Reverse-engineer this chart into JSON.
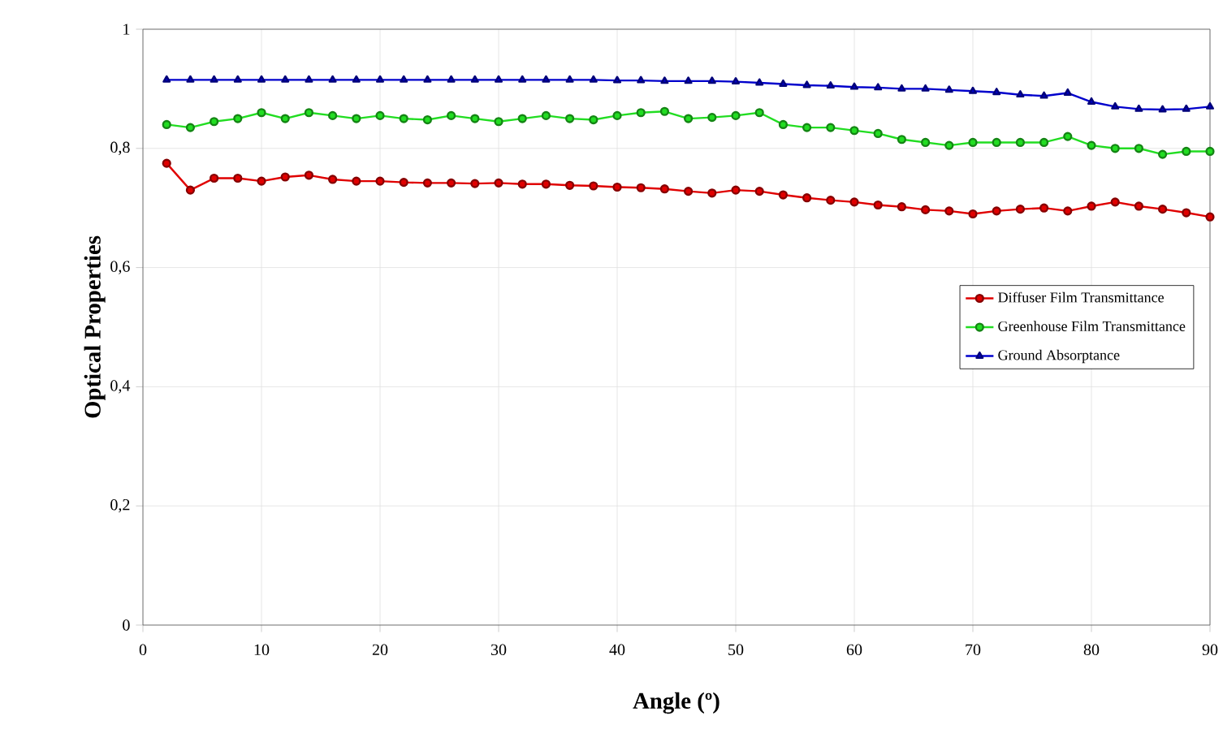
{
  "chart_data": {
    "type": "line",
    "xlabel": "Angle (º)",
    "ylabel": "Optical Properties",
    "x": [
      2,
      4,
      6,
      8,
      10,
      12,
      14,
      16,
      18,
      20,
      22,
      24,
      26,
      28,
      30,
      32,
      34,
      36,
      38,
      40,
      42,
      44,
      46,
      48,
      50,
      52,
      54,
      56,
      58,
      60,
      62,
      64,
      66,
      68,
      70,
      72,
      74,
      76,
      78,
      80,
      82,
      84,
      86,
      88,
      90
    ],
    "series": [
      {
        "name": "Diffuser Film Transmittance",
        "color": "#e00000",
        "marker": "circle",
        "values": [
          0.775,
          0.73,
          0.75,
          0.75,
          0.745,
          0.752,
          0.755,
          0.748,
          0.745,
          0.745,
          0.743,
          0.742,
          0.742,
          0.741,
          0.742,
          0.74,
          0.74,
          0.738,
          0.737,
          0.735,
          0.734,
          0.732,
          0.728,
          0.725,
          0.73,
          0.728,
          0.722,
          0.717,
          0.713,
          0.71,
          0.705,
          0.702,
          0.697,
          0.695,
          0.69,
          0.695,
          0.698,
          0.7,
          0.695,
          0.703,
          0.71,
          0.703,
          0.698,
          0.692,
          0.685
        ]
      },
      {
        "name": "Greenhouse Film Transmittance",
        "color": "#22dd22",
        "marker": "circle",
        "values": [
          0.84,
          0.835,
          0.845,
          0.85,
          0.86,
          0.85,
          0.86,
          0.855,
          0.85,
          0.855,
          0.85,
          0.848,
          0.855,
          0.85,
          0.845,
          0.85,
          0.855,
          0.85,
          0.848,
          0.855,
          0.86,
          0.862,
          0.85,
          0.852,
          0.855,
          0.86,
          0.84,
          0.835,
          0.835,
          0.83,
          0.825,
          0.815,
          0.81,
          0.805,
          0.81,
          0.81,
          0.81,
          0.81,
          0.82,
          0.805,
          0.8,
          0.8,
          0.79,
          0.795,
          0.795
        ]
      },
      {
        "name": "Ground Absorptance",
        "color": "#0000cc",
        "marker": "triangle",
        "values": [
          0.915,
          0.915,
          0.915,
          0.915,
          0.915,
          0.915,
          0.915,
          0.915,
          0.915,
          0.915,
          0.915,
          0.915,
          0.915,
          0.915,
          0.915,
          0.915,
          0.915,
          0.915,
          0.915,
          0.914,
          0.914,
          0.913,
          0.913,
          0.913,
          0.912,
          0.91,
          0.908,
          0.906,
          0.905,
          0.903,
          0.902,
          0.9,
          0.9,
          0.898,
          0.896,
          0.894,
          0.89,
          0.888,
          0.893,
          0.878,
          0.87,
          0.866,
          0.865,
          0.866,
          0.87
        ]
      }
    ],
    "xlim": [
      0,
      90
    ],
    "xticks": [
      0,
      10,
      20,
      30,
      40,
      50,
      60,
      70,
      80,
      90
    ],
    "ylim": [
      0,
      1
    ],
    "yticks": [
      0,
      {
        "value": 0.2,
        "label": "0,2"
      },
      {
        "value": 0.4,
        "label": "0,4"
      },
      {
        "value": 0.6,
        "label": "0,6"
      },
      {
        "value": 0.8,
        "label": "0,8"
      },
      1
    ],
    "grid": true,
    "legend": "right",
    "line_style": "solid"
  }
}
